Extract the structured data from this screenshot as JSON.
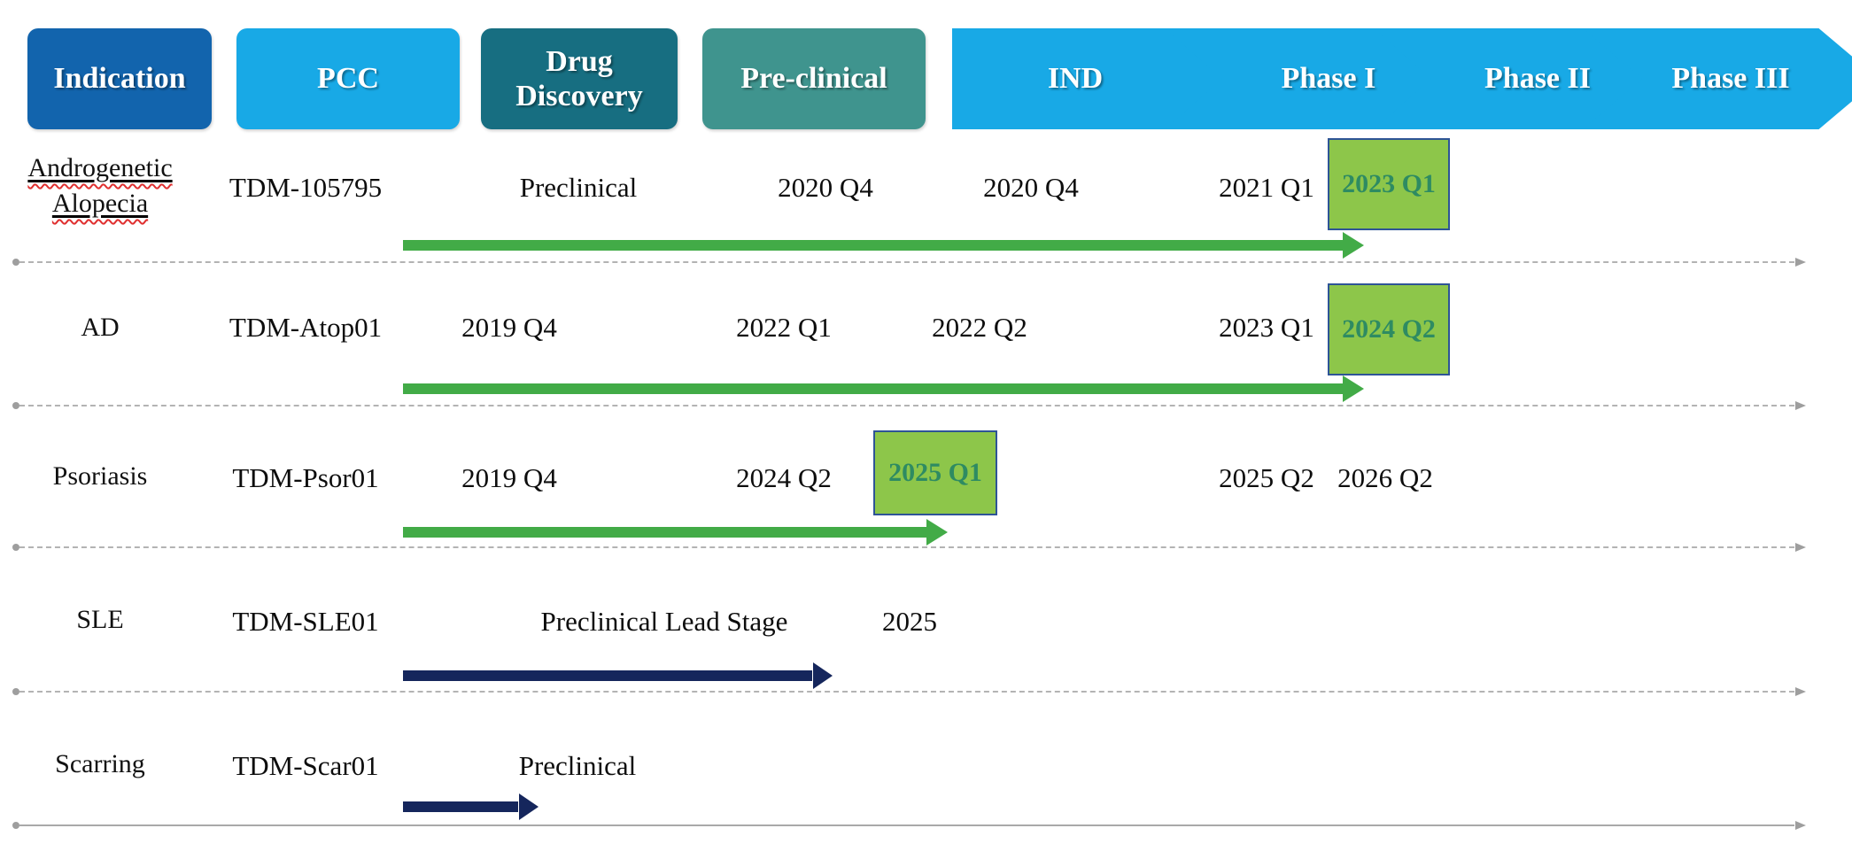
{
  "header": {
    "columns": [
      "Indication",
      "PCC",
      "Drug Discovery",
      "Pre-clinical"
    ],
    "phases": [
      "IND",
      "Phase I",
      "Phase II",
      "Phase III"
    ]
  },
  "rows": [
    {
      "indication": "Androgenetic Alopecia",
      "pcc": "TDM-105795",
      "stage": "Preclinical",
      "preclinical": "2020 Q4",
      "ind": "2020 Q4",
      "phase1": "2021 Q1",
      "milestone": "2023 Q1"
    },
    {
      "indication": "AD",
      "pcc": "TDM-Atop01",
      "discovery": "2019 Q4",
      "preclinical": "2022 Q1",
      "ind": "2022 Q2",
      "phase1": "2023 Q1",
      "milestone": "2024 Q2"
    },
    {
      "indication": "Psoriasis",
      "pcc": "TDM-Psor01",
      "discovery": "2019 Q4",
      "preclinical": "2024 Q2",
      "milestone": "2025 Q1",
      "phase1": "2025 Q2",
      "phase2": "2026 Q2"
    },
    {
      "indication": "SLE",
      "pcc": "TDM-SLE01",
      "stage": "Preclinical Lead Stage",
      "ind": "2025"
    },
    {
      "indication": "Scarring",
      "pcc": "TDM-Scar01",
      "stage": "Preclinical"
    }
  ],
  "colors": {
    "indication_box": "#1264ad",
    "pcc_box": "#18a9e6",
    "drug_discovery_box": "#176e81",
    "preclinical_box": "#3f948e",
    "chevron": "#18a9e6",
    "milestone_fill": "#8dc64a",
    "milestone_border": "#2e5496",
    "milestone_text": "#2e8b62",
    "green_arrow": "#42ab47",
    "navy_arrow": "#15265c",
    "separator": "#b3b3b3",
    "spellcheck_underline": "#e03030"
  },
  "markers": {
    "separator_start": "dot",
    "separator_end": "arrow-right"
  }
}
